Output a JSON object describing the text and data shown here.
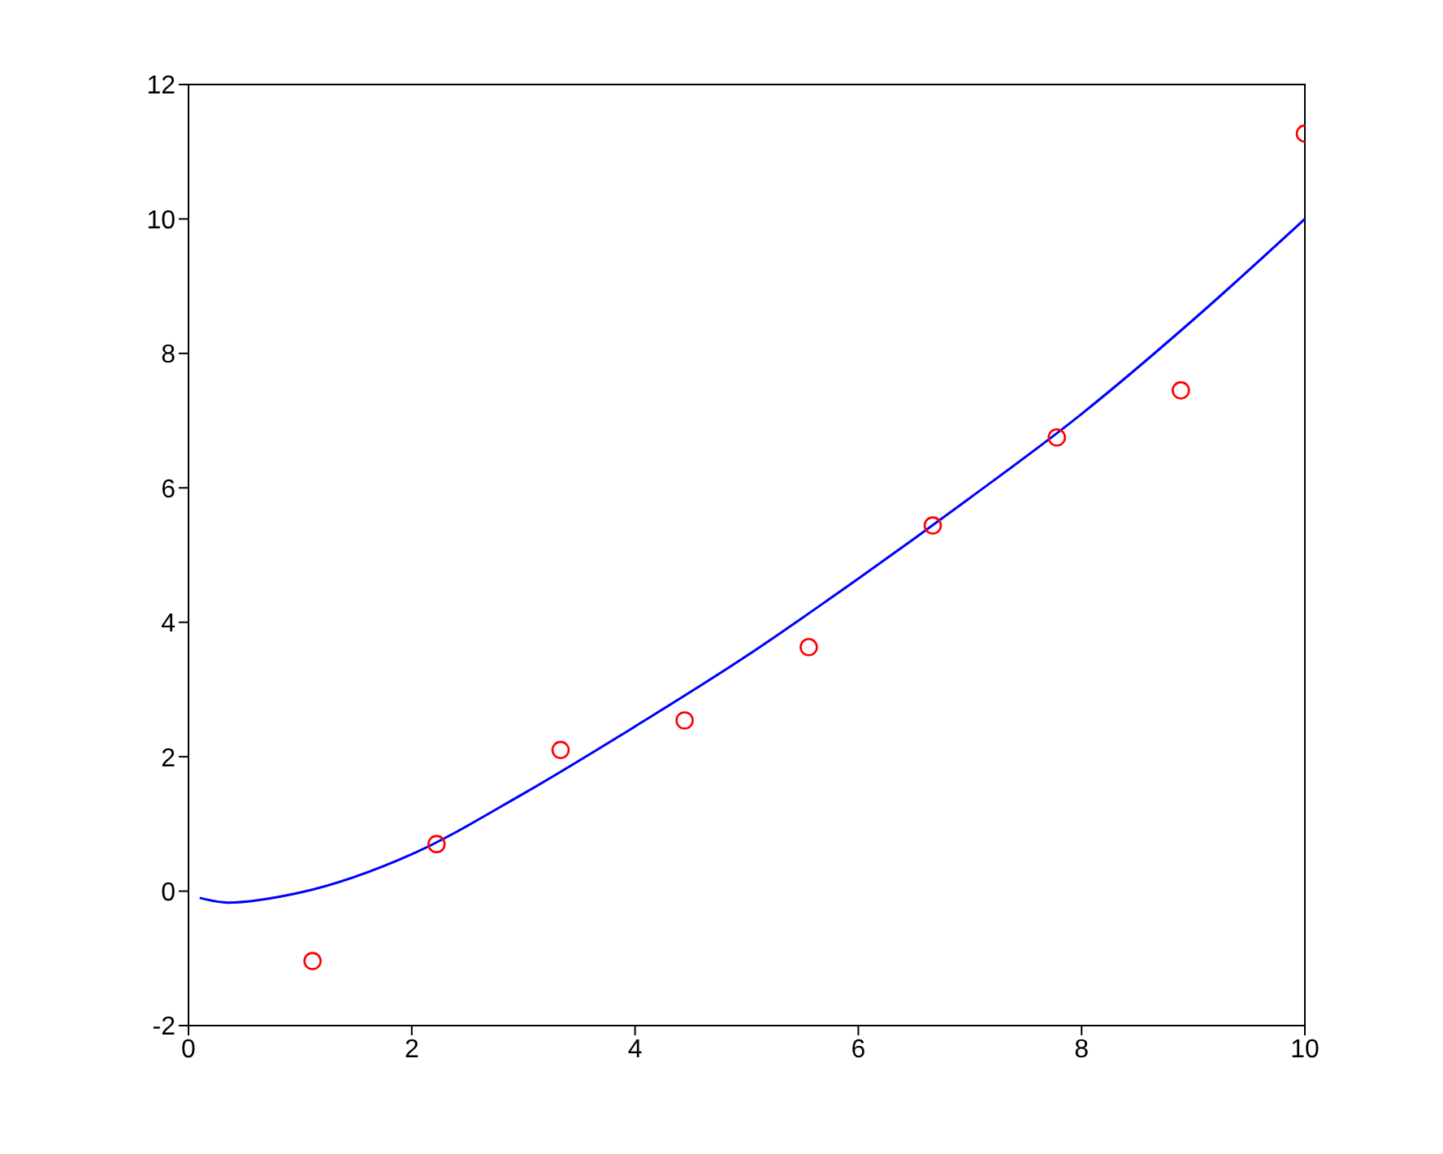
{
  "chart_data": {
    "type": "scatter",
    "xlim": [
      0,
      10
    ],
    "ylim": [
      -2,
      12
    ],
    "xticks": [
      0,
      2,
      4,
      6,
      8,
      10
    ],
    "yticks": [
      -2,
      0,
      2,
      4,
      6,
      8,
      10,
      12
    ],
    "grid": false,
    "marker": "circle",
    "series": [
      {
        "color": "#ff0000",
        "x": [
          1.111,
          2.222,
          3.333,
          4.444,
          5.556,
          6.667,
          7.778,
          8.889,
          10
        ],
        "values": [
          -1.04,
          0.7,
          2.1,
          2.54,
          3.63,
          5.44,
          6.75,
          7.45,
          11.27
        ]
      },
      {
        "type": "line",
        "color": "#0000ff",
        "marker": "none",
        "line_style": "solid",
        "x": [
          0.1,
          0.35,
          1,
          2,
          3,
          4,
          5,
          6,
          7,
          8,
          9,
          10
        ],
        "values": [
          -0.1,
          -0.17,
          -0.02,
          0.55,
          1.45,
          2.45,
          3.5,
          4.65,
          5.85,
          7.1,
          8.5,
          10
        ]
      }
    ]
  }
}
